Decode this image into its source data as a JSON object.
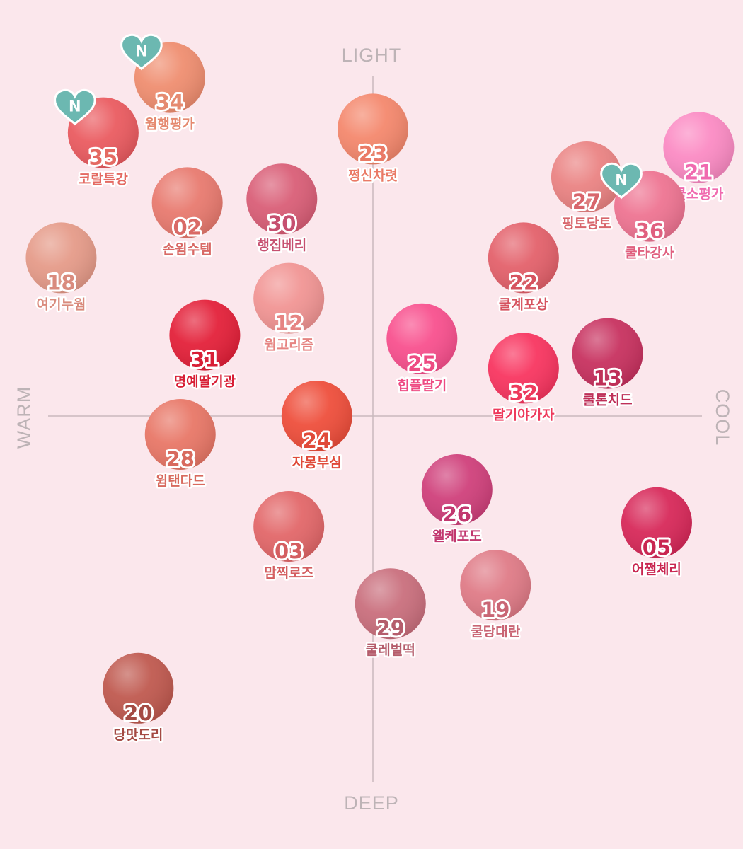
{
  "chart_data": {
    "type": "scatter",
    "axes": {
      "top": "LIGHT",
      "bottom": "DEEP",
      "left": "WARM",
      "right": "COOL"
    },
    "colors": {
      "background": "#fbe7ec",
      "axis": "#c9b9bd",
      "axis_text": "#bdb3b6",
      "badge": "#6cb8b1"
    },
    "badge_label": "N",
    "points": [
      {
        "id": "34",
        "name": "웜행평가",
        "tone": -0.58,
        "depth": 0.92,
        "swatch": "#ef8d6f",
        "text": "#e58a70",
        "badge": true
      },
      {
        "id": "35",
        "name": "코랄특강",
        "tone": -0.77,
        "depth": 0.77,
        "swatch": "#ea5a5f",
        "text": "#e46a62",
        "badge": true
      },
      {
        "id": "23",
        "name": "쩡신차렷",
        "tone": 0.0,
        "depth": 0.78,
        "swatch": "#f4876c",
        "text": "#ea7a66",
        "badge": false
      },
      {
        "id": "21",
        "name": "쿨소평가",
        "tone": 0.93,
        "depth": 0.73,
        "swatch": "#fb8ac3",
        "text": "#f06aaf",
        "badge": false
      },
      {
        "id": "27",
        "name": "핑토당토",
        "tone": 0.61,
        "depth": 0.65,
        "swatch": "#ea8282",
        "text": "#d8666c",
        "badge": false
      },
      {
        "id": "36",
        "name": "쿨타강사",
        "tone": 0.79,
        "depth": 0.57,
        "swatch": "#ee7391",
        "text": "#e0607f",
        "badge": true
      },
      {
        "id": "02",
        "name": "손윔수템",
        "tone": -0.53,
        "depth": 0.58,
        "swatch": "#e8796e",
        "text": "#d96a66",
        "badge": false
      },
      {
        "id": "30",
        "name": "행집베리",
        "tone": -0.26,
        "depth": 0.59,
        "swatch": "#d95d76",
        "text": "#c65070",
        "badge": false
      },
      {
        "id": "18",
        "name": "여기누웜",
        "tone": -0.89,
        "depth": 0.43,
        "swatch": "#e59a88",
        "text": "#d98b7d",
        "badge": false
      },
      {
        "id": "22",
        "name": "쿨계포상",
        "tone": 0.43,
        "depth": 0.43,
        "swatch": "#e3606a",
        "text": "#d6535f",
        "badge": false
      },
      {
        "id": "12",
        "name": "웜고리즘",
        "tone": -0.24,
        "depth": 0.32,
        "swatch": "#f19493",
        "text": "#e68482",
        "badge": false
      },
      {
        "id": "31",
        "name": "명예딸기광",
        "tone": -0.48,
        "depth": 0.22,
        "swatch": "#e31f38",
        "text": "#d81e35",
        "badge": false
      },
      {
        "id": "25",
        "name": "힙플딸기",
        "tone": 0.14,
        "depth": 0.21,
        "swatch": "#f84f8d",
        "text": "#ee4b83",
        "badge": false
      },
      {
        "id": "13",
        "name": "쿨톤치드",
        "tone": 0.67,
        "depth": 0.17,
        "swatch": "#c7305e",
        "text": "#bf3058",
        "badge": false
      },
      {
        "id": "32",
        "name": "딸기야가자",
        "tone": 0.43,
        "depth": 0.13,
        "swatch": "#f8345f",
        "text": "#ee3a5c",
        "badge": false
      },
      {
        "id": "28",
        "name": "윔탠다드",
        "tone": -0.55,
        "depth": -0.05,
        "swatch": "#e87666",
        "text": "#d86a5e",
        "badge": false
      },
      {
        "id": "24",
        "name": "자몽부심",
        "tone": -0.16,
        "depth": 0.0,
        "swatch": "#ee4d3a",
        "text": "#e04a39",
        "badge": false
      },
      {
        "id": "26",
        "name": "왤케포도",
        "tone": 0.24,
        "depth": -0.2,
        "swatch": "#cf3f7a",
        "text": "#c2386f",
        "badge": false
      },
      {
        "id": "03",
        "name": "맘찍로즈",
        "tone": -0.24,
        "depth": -0.3,
        "swatch": "#e26668",
        "text": "#d45e60",
        "badge": false
      },
      {
        "id": "05",
        "name": "어쩔체리",
        "tone": 0.81,
        "depth": -0.29,
        "swatch": "#d72758",
        "text": "#c92651",
        "badge": false
      },
      {
        "id": "29",
        "name": "쿨레벌떡",
        "tone": 0.05,
        "depth": -0.51,
        "swatch": "#c96e7c",
        "text": "#b55d6c",
        "badge": false
      },
      {
        "id": "19",
        "name": "쿨당대란",
        "tone": 0.35,
        "depth": -0.46,
        "swatch": "#df7a86",
        "text": "#c96574",
        "badge": false
      },
      {
        "id": "20",
        "name": "당맛도리",
        "tone": -0.67,
        "depth": -0.74,
        "swatch": "#bf584e",
        "text": "#a44a43",
        "badge": false
      }
    ]
  }
}
